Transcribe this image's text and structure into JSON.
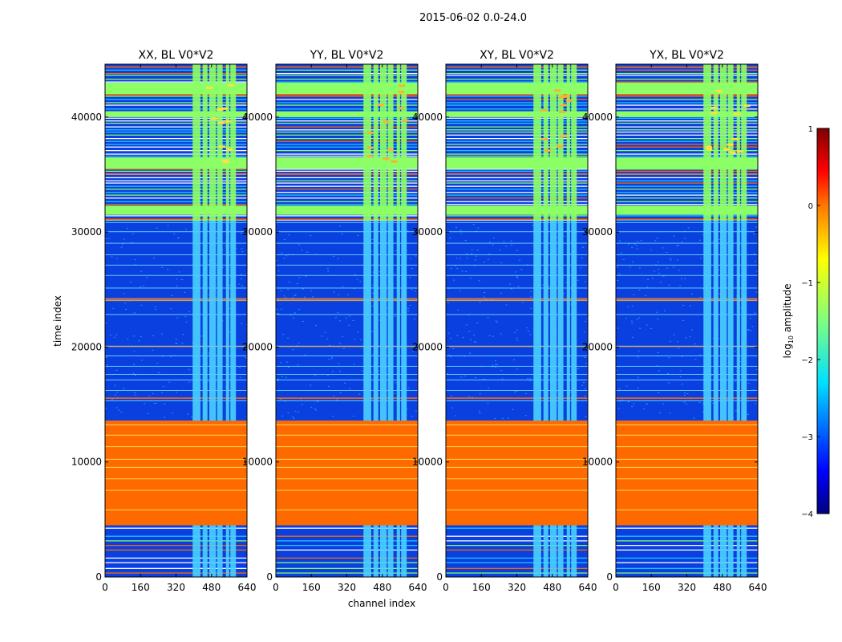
{
  "figure_title": "2015-06-02 0.0-24.0",
  "chart_data": {
    "type": "heatmap",
    "title": "2015-06-02 0.0-24.0",
    "xlabel": "channel index",
    "ylabel": "time index",
    "xlim": [
      0,
      640
    ],
    "ylim": [
      0,
      44600
    ],
    "xticks": [
      0,
      160,
      320,
      480,
      640
    ],
    "yticks": [
      0,
      10000,
      20000,
      30000,
      40000
    ],
    "panels": [
      {
        "title": "XX, BL V0*V2"
      },
      {
        "title": "YY, BL V0*V2"
      },
      {
        "title": "XY, BL V0*V2"
      },
      {
        "title": "YX, BL V0*V2"
      }
    ],
    "colorbar": {
      "label": "log10 amplitude",
      "label_base": "log",
      "label_sub": "10",
      "label_rest": " amplitude",
      "range": [
        -4,
        1
      ],
      "ticks": [
        1,
        0,
        -1,
        -2,
        -3,
        -4
      ],
      "tick_labels": [
        "1",
        "0",
        "−1",
        "−2",
        "−3",
        "−4"
      ],
      "colormap": "jet"
    },
    "time_bands": [
      {
        "from": 4500,
        "to": 13600,
        "value": 0.0,
        "desc": "saturated block"
      },
      {
        "from": 13600,
        "to": 31000,
        "value": -3.2,
        "desc": "low noise"
      },
      {
        "from": 31000,
        "to": 44600,
        "value": -3.0,
        "desc": "striped"
      },
      {
        "from": 35500,
        "to": 36500,
        "value": -1.4,
        "desc": "bright band"
      },
      {
        "from": 42000,
        "to": 43000,
        "value": -1.4,
        "desc": "bright band"
      },
      {
        "from": 31500,
        "to": 32300,
        "value": -1.6,
        "desc": "bright band"
      }
    ],
    "channel_bands": [
      {
        "from": 390,
        "to": 590,
        "value": -1.8,
        "desc": "RFI channels"
      }
    ]
  },
  "colors": {
    "saturated": "#ff6a00",
    "low": "#0a3fe0",
    "mid": "#8cff66",
    "cyan": "#1ec8ff"
  }
}
